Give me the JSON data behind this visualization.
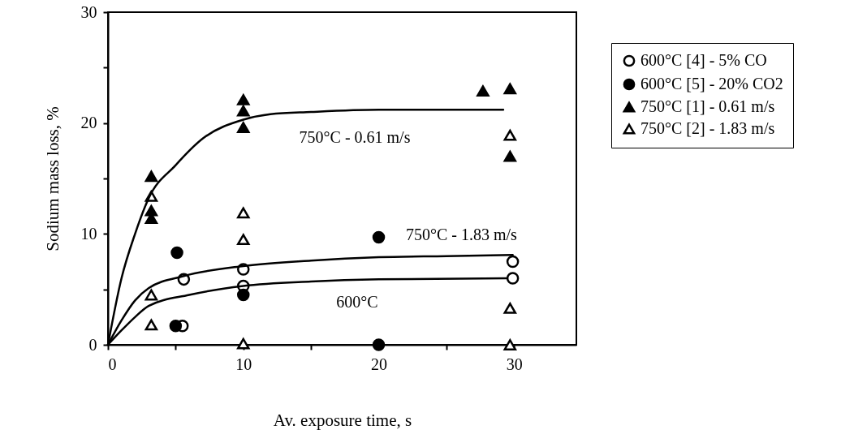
{
  "chart_data": {
    "type": "scatter",
    "xlabel": "Av. exposure time, s",
    "ylabel": "Sodium mass loss, %",
    "xlim": [
      0,
      34.6
    ],
    "xticks": [
      0,
      {
        "value": 5,
        "label": null
      },
      10,
      {
        "value": 15,
        "label": null
      },
      20,
      {
        "value": 25,
        "label": null
      },
      30
    ],
    "ylim": [
      0,
      30
    ],
    "yticks": [
      0,
      {
        "value": 5,
        "label": null
      },
      10,
      {
        "value": 15,
        "label": null
      },
      20,
      {
        "value": 25,
        "label": null
      },
      30
    ],
    "grid": false,
    "legend": "right",
    "series": [
      {
        "name": "600°C [4] - 5% CO",
        "color": "#ffffff",
        "marker": "circle",
        "x": [
          5.6,
          10,
          10,
          29.9,
          29.9,
          5.5
        ],
        "values": [
          5.9,
          6.8,
          5.3,
          7.5,
          6.0,
          1.7
        ]
      },
      {
        "name": "600°C [5] - 20% CO2",
        "color": "#000000",
        "marker": "circle",
        "x": [
          5.1,
          5.0,
          10,
          20,
          20
        ],
        "values": [
          8.3,
          1.7,
          4.5,
          9.7,
          0
        ]
      },
      {
        "name": "750°C [1] - 0.61 m/s",
        "color": "#000000",
        "marker": "triangle",
        "x": [
          3.2,
          3.2,
          3.2,
          10,
          10,
          10,
          27.7,
          29.7,
          29.7
        ],
        "values": [
          15.2,
          12.1,
          11.4,
          22.1,
          21.1,
          19.6,
          22.9,
          23.1,
          17.0
        ]
      },
      {
        "name": "750°C [2] - 1.83 m/s",
        "color": "#ffffff",
        "marker": "triangle",
        "x": [
          3.2,
          3.2,
          3.2,
          10,
          10,
          10,
          29.7,
          29.7,
          29.7
        ],
        "values": [
          13.4,
          4.5,
          1.8,
          11.9,
          9.5,
          0.1,
          18.9,
          3.3,
          0
        ]
      },
      {
        "type": "line",
        "color": "#000000",
        "marker": "none",
        "x": [
          0,
          1,
          2,
          3,
          5,
          7,
          10,
          12,
          15,
          20,
          25,
          29.2
        ],
        "values": [
          0,
          6,
          10,
          13.2,
          16.2,
          18.6,
          20.3,
          20.8,
          21.0,
          21.2,
          21.2,
          21.2
        ]
      },
      {
        "type": "line",
        "color": "#000000",
        "marker": "none",
        "x": [
          0,
          1,
          2,
          3,
          5.6,
          10,
          15,
          20,
          25,
          29.9
        ],
        "values": [
          0,
          2.2,
          4,
          5.1,
          6.2,
          7.1,
          7.6,
          7.9,
          8.0,
          8.1
        ]
      },
      {
        "type": "line",
        "color": "#000000",
        "marker": "none",
        "x": [
          0,
          1,
          2,
          3,
          6,
          10,
          15,
          20,
          29.5
        ],
        "values": [
          0,
          1.3,
          2.5,
          3.5,
          4.5,
          5.3,
          5.7,
          5.9,
          6.0
        ]
      }
    ],
    "annotations": [
      "750°C - 0.61 m/s",
      "750°C - 1.83 m/s",
      "600°C"
    ]
  }
}
